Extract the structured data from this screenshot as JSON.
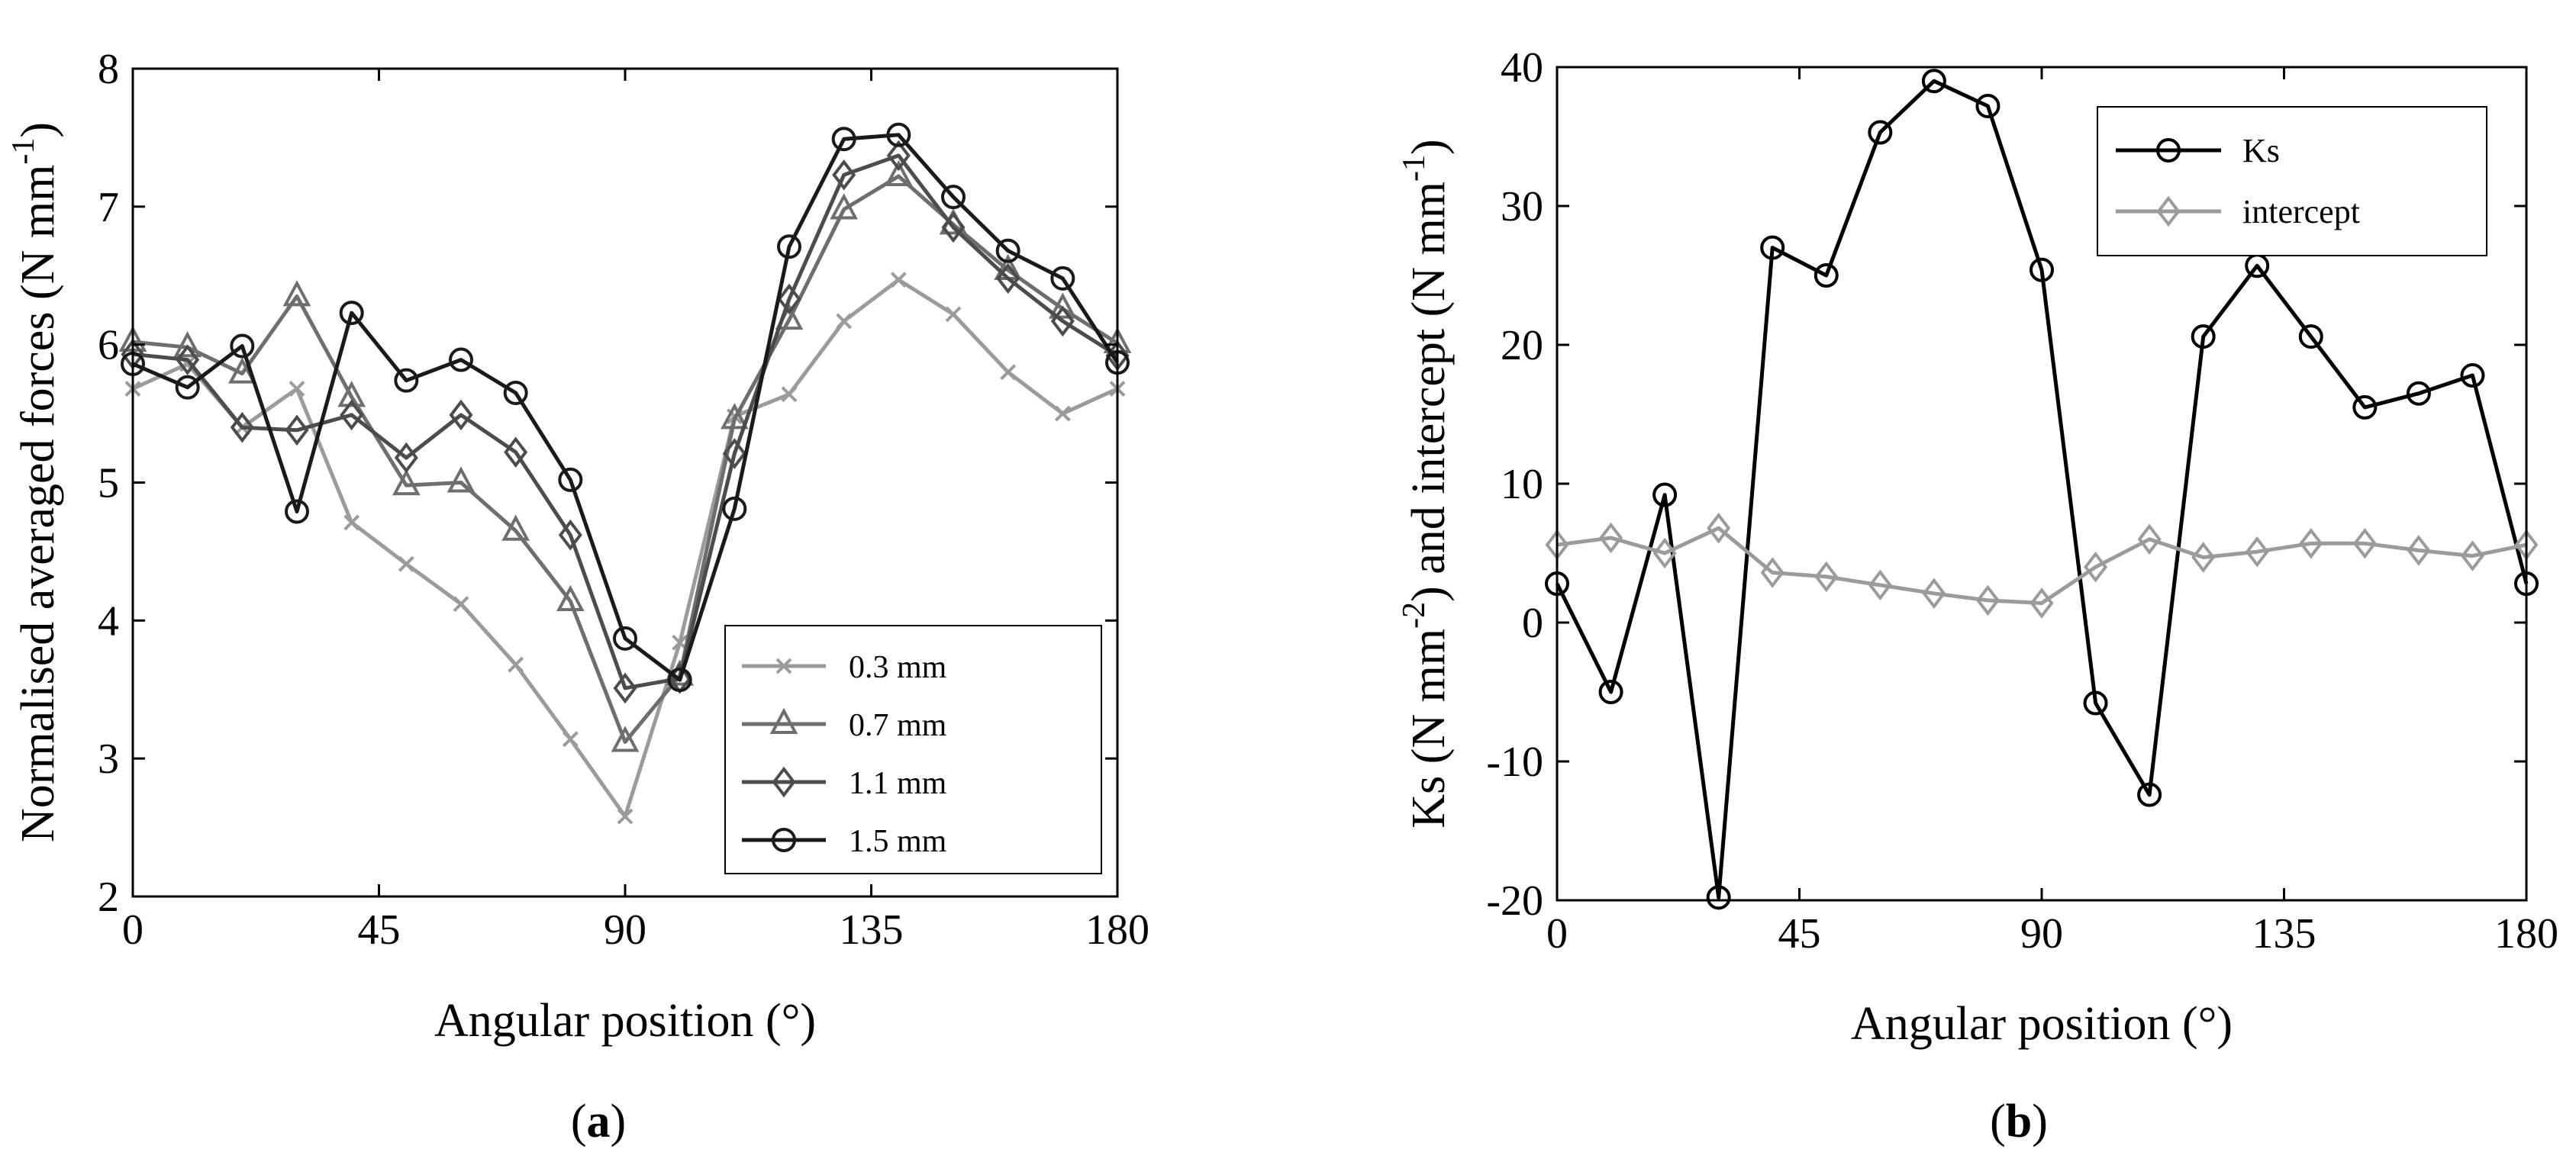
{
  "chart_data": [
    {
      "panel": "a",
      "type": "line",
      "panel_label_open": "(",
      "panel_label_letter": "a",
      "panel_label_close": ")",
      "xlabel": "Angular position (°)",
      "ylabel": "Normalised averaged forces (N mm",
      "ylabel_sup": "-1",
      "ylabel_close": ")",
      "xlim": [
        0,
        180
      ],
      "ylim": [
        2,
        8
      ],
      "xticks": [
        0,
        45,
        90,
        135,
        180
      ],
      "yticks": [
        2,
        3,
        4,
        5,
        6,
        7,
        8
      ],
      "grid": false,
      "legend_position": "lower-right",
      "x": [
        0,
        10,
        20,
        30,
        40,
        50,
        60,
        70,
        80,
        90,
        100,
        110,
        120,
        130,
        140,
        150,
        160,
        170,
        180
      ],
      "series": [
        {
          "name": "0.3 mm",
          "color": "#9b9b9b",
          "marker": "x",
          "values": [
            5.68,
            5.86,
            5.4,
            5.68,
            4.71,
            4.41,
            4.12,
            3.68,
            3.14,
            2.58,
            3.84,
            5.48,
            5.64,
            6.17,
            6.47,
            6.22,
            5.8,
            5.5,
            5.68
          ]
        },
        {
          "name": "0.7 mm",
          "color": "#6e6e6e",
          "marker": "triangle",
          "values": [
            6.02,
            5.98,
            5.79,
            6.35,
            5.62,
            4.98,
            5.0,
            4.65,
            4.14,
            3.12,
            3.6,
            5.46,
            6.18,
            6.98,
            7.22,
            6.87,
            6.54,
            6.26,
            6.01
          ]
        },
        {
          "name": "1.1 mm",
          "color": "#4c4c4c",
          "marker": "diamond",
          "values": [
            5.93,
            5.89,
            5.4,
            5.38,
            5.49,
            5.18,
            5.49,
            5.22,
            4.62,
            3.51,
            3.58,
            5.21,
            6.33,
            7.23,
            7.37,
            6.85,
            6.48,
            6.17,
            5.92
          ]
        },
        {
          "name": "1.5 mm",
          "color": "#1a1a1a",
          "marker": "circle",
          "values": [
            5.86,
            5.69,
            5.99,
            4.79,
            6.23,
            5.74,
            5.89,
            5.65,
            5.02,
            3.87,
            3.57,
            4.81,
            6.71,
            7.49,
            7.52,
            7.07,
            6.68,
            6.48,
            5.87
          ]
        }
      ]
    },
    {
      "panel": "b",
      "type": "line",
      "panel_label_open": "(",
      "panel_label_letter": "b",
      "panel_label_close": ")",
      "xlabel": "Angular position (°)",
      "ylabel_part1": "Ks (N mm",
      "ylabel_sup1": "-2",
      "ylabel_part2": ") and intercept (N mm",
      "ylabel_sup2": "-1",
      "ylabel_close": ")",
      "xlim": [
        0,
        180
      ],
      "ylim": [
        -20,
        40
      ],
      "xticks": [
        0,
        45,
        90,
        135,
        180
      ],
      "yticks": [
        -20,
        -10,
        0,
        10,
        20,
        30,
        40
      ],
      "grid": false,
      "legend_position": "top-right",
      "x": [
        0,
        10,
        20,
        30,
        40,
        50,
        60,
        70,
        80,
        90,
        100,
        110,
        120,
        130,
        140,
        150,
        160,
        170,
        180
      ],
      "series": [
        {
          "name": "Ks",
          "color": "#000000",
          "marker": "circle",
          "values": [
            2.8,
            -5.0,
            9.2,
            -19.8,
            27.0,
            25.0,
            35.3,
            39.0,
            37.2,
            25.4,
            -5.8,
            -12.4,
            20.6,
            25.7,
            20.6,
            15.5,
            16.5,
            17.8,
            2.8
          ]
        },
        {
          "name": "intercept",
          "color": "#9b9b9b",
          "marker": "diamond",
          "values": [
            5.6,
            6.1,
            5.0,
            6.8,
            3.6,
            3.3,
            2.7,
            2.1,
            1.6,
            1.4,
            4.0,
            6.0,
            4.7,
            5.1,
            5.7,
            5.7,
            5.2,
            4.8,
            5.6
          ]
        }
      ]
    }
  ]
}
